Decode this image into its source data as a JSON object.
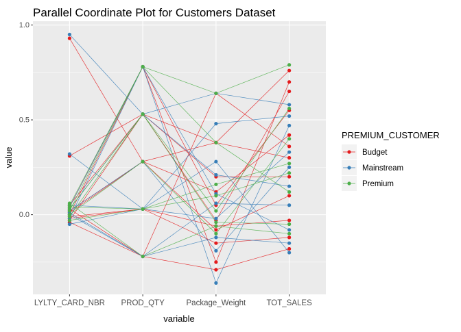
{
  "chart_data": {
    "type": "line",
    "subtype": "parallel-coordinates",
    "title": "Parallel Coordinate Plot for Customers Dataset",
    "xlabel": "variable",
    "ylabel": "value",
    "categories": [
      "LYLTY_CARD_NBR",
      "PROD_QTY",
      "Package_Weight",
      "TOT_SALES"
    ],
    "ylim": [
      -0.42,
      1.02
    ],
    "yticks": [
      0.0,
      0.5,
      1.0
    ],
    "ytick_labels": [
      "0.0",
      "0.5",
      "1.0"
    ],
    "grid": true,
    "legend": {
      "title": "PREMIUM_CUSTOMER",
      "position": "right",
      "entries": [
        {
          "name": "Budget",
          "color": "#e41a1c"
        },
        {
          "name": "Mainstream",
          "color": "#377eb8"
        },
        {
          "name": "Premium",
          "color": "#4daf4a"
        }
      ]
    },
    "series": [
      {
        "name": "Budget",
        "color": "#e41a1c",
        "values": [
          0.93,
          0.28,
          0.38,
          0.76
        ]
      },
      {
        "name": "Budget",
        "color": "#e41a1c",
        "values": [
          0.31,
          0.53,
          -0.03,
          0.65
        ]
      },
      {
        "name": "Budget",
        "color": "#e41a1c",
        "values": [
          0.04,
          0.78,
          -0.25,
          0.7
        ]
      },
      {
        "name": "Budget",
        "color": "#e41a1c",
        "values": [
          0.02,
          0.28,
          0.12,
          0.42
        ]
      },
      {
        "name": "Budget",
        "color": "#e41a1c",
        "values": [
          -0.02,
          0.03,
          -0.15,
          -0.12
        ]
      },
      {
        "name": "Budget",
        "color": "#e41a1c",
        "values": [
          -0.04,
          -0.22,
          -0.29,
          -0.18
        ]
      },
      {
        "name": "Budget",
        "color": "#e41a1c",
        "values": [
          0.05,
          0.53,
          0.38,
          0.3
        ]
      },
      {
        "name": "Budget",
        "color": "#e41a1c",
        "values": [
          0.0,
          0.78,
          0.05,
          0.55
        ]
      },
      {
        "name": "Budget",
        "color": "#e41a1c",
        "values": [
          -0.01,
          0.03,
          -0.06,
          -0.03
        ]
      },
      {
        "name": "Budget",
        "color": "#e41a1c",
        "values": [
          0.03,
          -0.22,
          0.64,
          0.36
        ]
      },
      {
        "name": "Budget",
        "color": "#e41a1c",
        "values": [
          0.01,
          0.28,
          -0.08,
          0.1
        ]
      },
      {
        "name": "Budget",
        "color": "#e41a1c",
        "values": [
          -0.03,
          0.53,
          0.2,
          0.2
        ]
      },
      {
        "name": "Mainstream",
        "color": "#377eb8",
        "values": [
          0.95,
          0.53,
          0.64,
          0.58
        ]
      },
      {
        "name": "Mainstream",
        "color": "#377eb8",
        "values": [
          0.32,
          0.03,
          0.48,
          0.52
        ]
      },
      {
        "name": "Mainstream",
        "color": "#377eb8",
        "values": [
          0.04,
          0.78,
          -0.36,
          0.47
        ]
      },
      {
        "name": "Mainstream",
        "color": "#377eb8",
        "values": [
          -0.05,
          0.03,
          0.28,
          -0.2
        ]
      },
      {
        "name": "Mainstream",
        "color": "#377eb8",
        "values": [
          0.02,
          0.28,
          -0.19,
          0.25
        ]
      },
      {
        "name": "Mainstream",
        "color": "#377eb8",
        "values": [
          0.0,
          -0.22,
          0.06,
          0.05
        ]
      },
      {
        "name": "Mainstream",
        "color": "#377eb8",
        "values": [
          0.03,
          0.53,
          0.21,
          0.15
        ]
      },
      {
        "name": "Mainstream",
        "color": "#377eb8",
        "values": [
          -0.02,
          0.78,
          0.11,
          -0.08
        ]
      },
      {
        "name": "Mainstream",
        "color": "#377eb8",
        "values": [
          0.05,
          0.03,
          -0.02,
          0.33
        ]
      },
      {
        "name": "Mainstream",
        "color": "#377eb8",
        "values": [
          0.01,
          -0.22,
          -0.12,
          -0.15
        ]
      },
      {
        "name": "Premium",
        "color": "#4daf4a",
        "values": [
          0.05,
          0.78,
          0.64,
          0.79
        ]
      },
      {
        "name": "Premium",
        "color": "#4daf4a",
        "values": [
          0.03,
          0.53,
          0.02,
          0.56
        ]
      },
      {
        "name": "Premium",
        "color": "#4daf4a",
        "values": [
          0.0,
          0.28,
          -0.1,
          0.4
        ]
      },
      {
        "name": "Premium",
        "color": "#4daf4a",
        "values": [
          -0.03,
          0.03,
          0.16,
          0.27
        ]
      },
      {
        "name": "Premium",
        "color": "#4daf4a",
        "values": [
          0.06,
          -0.22,
          -0.06,
          -0.1
        ]
      },
      {
        "name": "Premium",
        "color": "#4daf4a",
        "values": [
          0.02,
          0.78,
          0.38,
          0.12
        ]
      },
      {
        "name": "Premium",
        "color": "#4daf4a",
        "values": [
          -0.01,
          0.53,
          -0.04,
          -0.05
        ]
      },
      {
        "name": "Premium",
        "color": "#4daf4a",
        "values": [
          0.04,
          0.03,
          0.1,
          0.22
        ]
      }
    ]
  }
}
